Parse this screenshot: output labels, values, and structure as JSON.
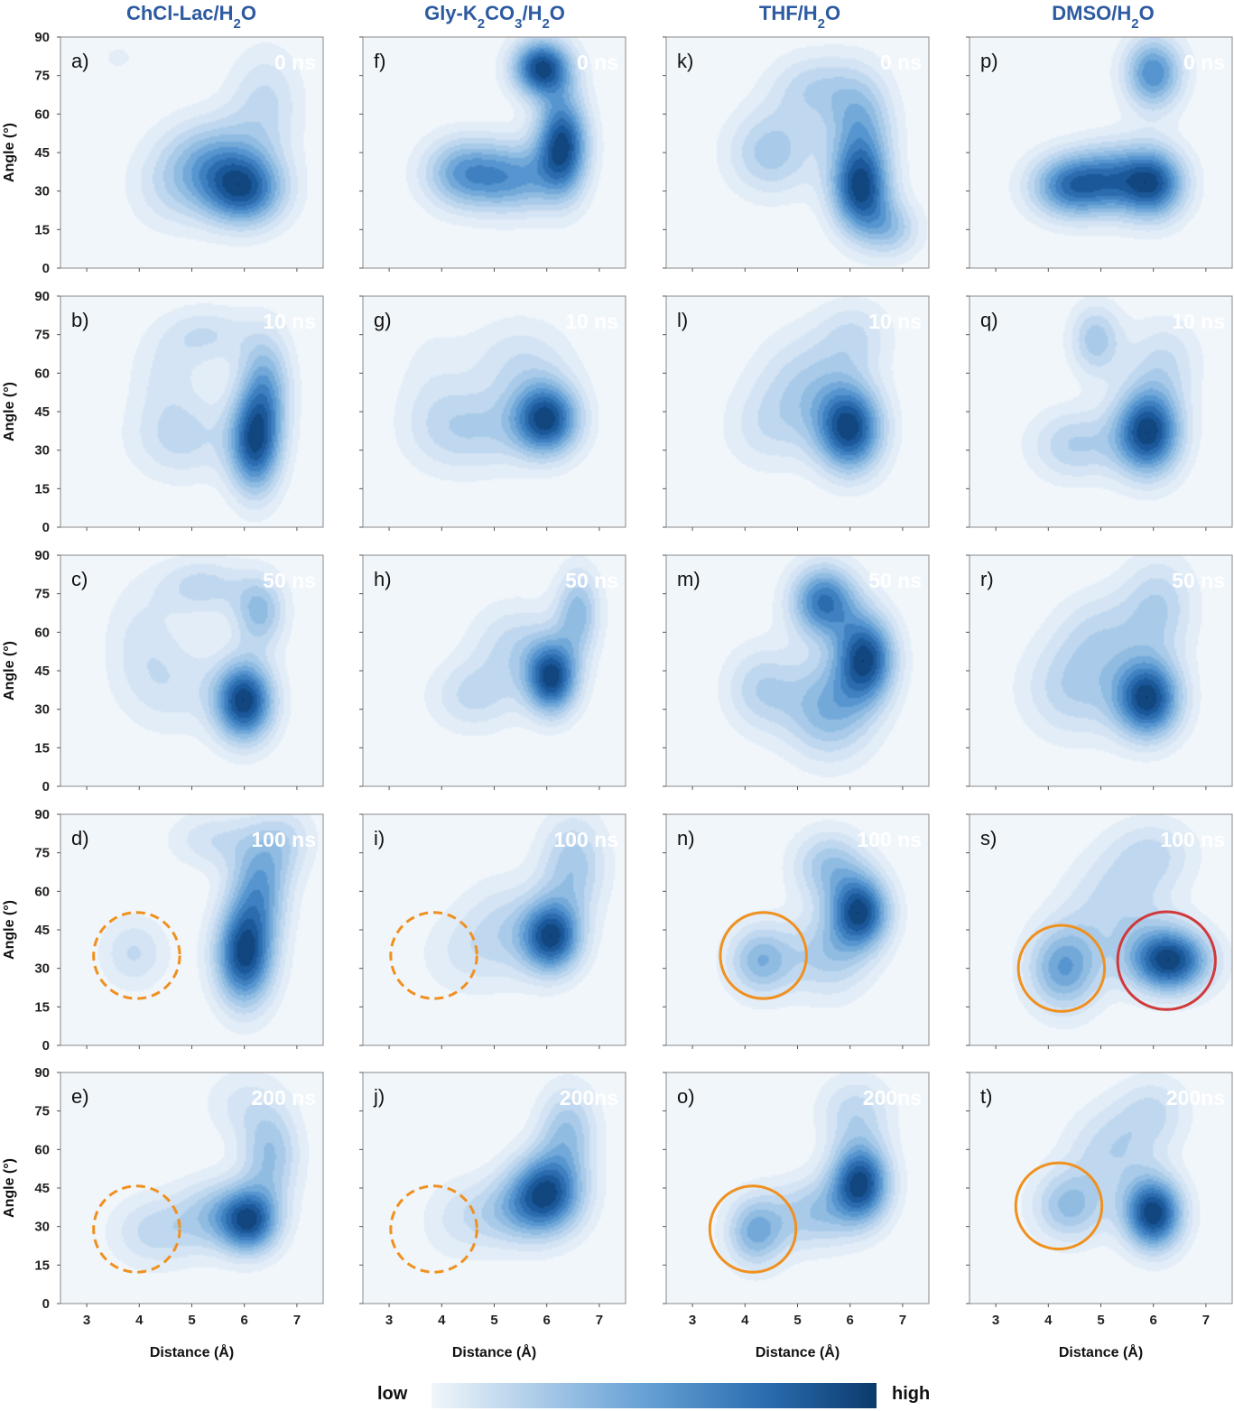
{
  "columns": [
    {
      "title": "ChCl-Lac/H",
      "sub": "2",
      "tail": "O"
    },
    {
      "title": "Gly-K",
      "sub": "2",
      "mid": "CO",
      "sub2": "3",
      "tail": "/H",
      "sub3": "2",
      "tail2": "O"
    },
    {
      "title": "THF/H",
      "sub": "2",
      "tail": "O"
    },
    {
      "title": "DMSO/H",
      "sub": "2",
      "tail": "O"
    }
  ],
  "colorbar": {
    "low": "low",
    "high": "high",
    "colors": [
      "#f1f6fb",
      "#0b3a6c"
    ]
  },
  "chart_data": {
    "type": "heatmap",
    "description_grid": "5 rows (time) x 4 columns (solvent) of 2D density maps",
    "xlabel": "Distance (Å)",
    "ylabel": "Angle (°)",
    "xlim": [
      2.5,
      7.5
    ],
    "ylim": [
      0,
      90
    ],
    "xticks": [
      3,
      4,
      5,
      6,
      7
    ],
    "yticks": [
      0,
      15,
      30,
      45,
      60,
      75,
      90
    ],
    "panels": [
      {
        "label": "a)",
        "time": "0 ns",
        "col": 0,
        "row": 0,
        "peaks": [
          [
            6.0,
            30,
            1.0,
            0.55,
            10
          ],
          [
            5.4,
            42,
            0.6,
            0.7,
            12
          ],
          [
            6.4,
            65,
            0.35,
            0.5,
            15
          ],
          [
            4.6,
            30,
            0.25,
            0.6,
            12
          ],
          [
            3.6,
            82,
            0.12,
            0.5,
            8
          ]
        ]
      },
      {
        "label": "b)",
        "time": "10 ns",
        "col": 0,
        "row": 1,
        "peaks": [
          [
            6.2,
            32,
            1.0,
            0.35,
            14
          ],
          [
            6.4,
            55,
            0.6,
            0.35,
            15
          ],
          [
            4.8,
            35,
            0.35,
            0.7,
            12
          ],
          [
            5.3,
            75,
            0.3,
            0.6,
            8
          ],
          [
            4.5,
            60,
            0.2,
            0.5,
            12
          ]
        ]
      },
      {
        "label": "c)",
        "time": "50 ns",
        "col": 0,
        "row": 2,
        "peaks": [
          [
            6.0,
            33,
            1.0,
            0.4,
            11
          ],
          [
            6.3,
            68,
            0.45,
            0.35,
            10
          ],
          [
            5.2,
            78,
            0.3,
            0.6,
            8
          ],
          [
            4.6,
            40,
            0.22,
            0.7,
            14
          ],
          [
            4.0,
            60,
            0.15,
            0.5,
            15
          ]
        ]
      },
      {
        "label": "d)",
        "time": "100 ns",
        "col": 0,
        "row": 3,
        "peaks": [
          [
            6.0,
            35,
            1.0,
            0.4,
            14
          ],
          [
            6.3,
            62,
            0.55,
            0.4,
            14
          ],
          [
            3.9,
            36,
            0.28,
            0.45,
            10
          ],
          [
            5.4,
            80,
            0.25,
            0.6,
            8
          ],
          [
            6.8,
            80,
            0.25,
            0.4,
            10
          ]
        ]
      },
      {
        "label": "e)",
        "time": "200 ns",
        "col": 0,
        "row": 4,
        "peaks": [
          [
            6.1,
            32,
            1.0,
            0.4,
            9
          ],
          [
            6.5,
            58,
            0.5,
            0.4,
            14
          ],
          [
            4.3,
            28,
            0.35,
            0.6,
            10
          ],
          [
            5.4,
            35,
            0.4,
            0.5,
            10
          ],
          [
            5.9,
            78,
            0.2,
            0.5,
            10
          ]
        ]
      },
      {
        "label": "f)",
        "time": "0 ns",
        "col": 1,
        "row": 0,
        "peaks": [
          [
            5.9,
            78,
            1.0,
            0.4,
            8
          ],
          [
            6.3,
            48,
            1.0,
            0.35,
            14
          ],
          [
            4.4,
            37,
            0.6,
            0.55,
            10
          ],
          [
            5.4,
            35,
            0.55,
            0.55,
            10
          ]
        ]
      },
      {
        "label": "g)",
        "time": "10 ns",
        "col": 1,
        "row": 1,
        "peaks": [
          [
            6.0,
            42,
            1.0,
            0.45,
            10
          ],
          [
            4.6,
            38,
            0.35,
            0.8,
            12
          ],
          [
            5.5,
            65,
            0.25,
            0.7,
            12
          ],
          [
            3.8,
            55,
            0.12,
            0.5,
            20
          ]
        ]
      },
      {
        "label": "h)",
        "time": "50 ns",
        "col": 1,
        "row": 2,
        "peaks": [
          [
            6.1,
            42,
            1.0,
            0.35,
            10
          ],
          [
            6.6,
            68,
            0.5,
            0.3,
            12
          ],
          [
            4.6,
            35,
            0.3,
            0.6,
            10
          ],
          [
            5.4,
            55,
            0.3,
            0.6,
            12
          ]
        ]
      },
      {
        "label": "i)",
        "time": "100 ns",
        "col": 1,
        "row": 3,
        "peaks": [
          [
            6.1,
            42,
            1.0,
            0.4,
            10
          ],
          [
            6.5,
            70,
            0.45,
            0.45,
            14
          ],
          [
            4.3,
            35,
            0.15,
            0.6,
            12
          ],
          [
            5.2,
            45,
            0.3,
            0.6,
            14
          ]
        ]
      },
      {
        "label": "j)",
        "time": "200ns",
        "col": 1,
        "row": 4,
        "peaks": [
          [
            6.0,
            43,
            1.0,
            0.5,
            11
          ],
          [
            6.4,
            68,
            0.45,
            0.4,
            12
          ],
          [
            4.2,
            32,
            0.15,
            0.5,
            12
          ],
          [
            5.2,
            35,
            0.35,
            0.6,
            10
          ]
        ]
      },
      {
        "label": "k)",
        "time": "0 ns",
        "col": 2,
        "row": 0,
        "peaks": [
          [
            6.2,
            30,
            1.0,
            0.4,
            12
          ],
          [
            6.2,
            55,
            0.55,
            0.45,
            15
          ],
          [
            4.5,
            45,
            0.45,
            0.6,
            12
          ],
          [
            6.8,
            15,
            0.4,
            0.4,
            8
          ],
          [
            5.3,
            70,
            0.35,
            0.6,
            10
          ]
        ]
      },
      {
        "label": "l)",
        "time": "10 ns",
        "col": 2,
        "row": 1,
        "peaks": [
          [
            6.0,
            38,
            1.0,
            0.45,
            12
          ],
          [
            5.2,
            55,
            0.35,
            0.7,
            15
          ],
          [
            4.4,
            38,
            0.2,
            0.6,
            12
          ],
          [
            6.1,
            75,
            0.25,
            0.5,
            10
          ]
        ]
      },
      {
        "label": "m)",
        "time": "50 ns",
        "col": 2,
        "row": 2,
        "peaks": [
          [
            6.3,
            50,
            1.0,
            0.4,
            12
          ],
          [
            5.5,
            72,
            0.85,
            0.45,
            10
          ],
          [
            5.6,
            30,
            0.55,
            0.6,
            14
          ],
          [
            4.3,
            38,
            0.35,
            0.5,
            12
          ]
        ]
      },
      {
        "label": "n)",
        "time": "100 ns",
        "col": 2,
        "row": 3,
        "peaks": [
          [
            6.2,
            52,
            1.0,
            0.4,
            10
          ],
          [
            4.3,
            33,
            0.55,
            0.45,
            10
          ],
          [
            5.6,
            70,
            0.45,
            0.5,
            10
          ],
          [
            5.6,
            35,
            0.4,
            0.55,
            12
          ]
        ]
      },
      {
        "label": "o)",
        "time": "200ns",
        "col": 2,
        "row": 4,
        "peaks": [
          [
            6.2,
            47,
            1.0,
            0.4,
            11
          ],
          [
            4.2,
            28,
            0.55,
            0.4,
            10
          ],
          [
            5.3,
            35,
            0.4,
            0.55,
            10
          ],
          [
            6.1,
            75,
            0.3,
            0.5,
            10
          ]
        ]
      },
      {
        "label": "p)",
        "time": "0 ns",
        "col": 3,
        "row": 0,
        "peaks": [
          [
            6.0,
            33,
            1.0,
            0.45,
            10
          ],
          [
            4.4,
            32,
            0.85,
            0.55,
            9
          ],
          [
            6.0,
            76,
            0.8,
            0.4,
            10
          ],
          [
            5.2,
            35,
            0.55,
            0.5,
            10
          ]
        ]
      },
      {
        "label": "q)",
        "time": "10 ns",
        "col": 3,
        "row": 1,
        "peaks": [
          [
            5.9,
            37,
            1.0,
            0.45,
            12
          ],
          [
            4.9,
            73,
            0.4,
            0.35,
            10
          ],
          [
            4.5,
            32,
            0.35,
            0.6,
            10
          ],
          [
            6.2,
            65,
            0.25,
            0.5,
            12
          ]
        ]
      },
      {
        "label": "r)",
        "time": "50 ns",
        "col": 3,
        "row": 2,
        "peaks": [
          [
            5.9,
            34,
            1.0,
            0.45,
            11
          ],
          [
            4.5,
            38,
            0.35,
            0.7,
            14
          ],
          [
            6.1,
            70,
            0.35,
            0.5,
            14
          ],
          [
            5.0,
            60,
            0.25,
            0.6,
            12
          ]
        ]
      },
      {
        "label": "s)",
        "time": "100 ns",
        "col": 3,
        "row": 3,
        "peaks": [
          [
            6.3,
            33,
            1.0,
            0.55,
            9
          ],
          [
            4.3,
            30,
            0.6,
            0.5,
            12
          ],
          [
            5.3,
            55,
            0.3,
            0.7,
            14
          ],
          [
            6.0,
            75,
            0.25,
            0.6,
            10
          ]
        ]
      },
      {
        "label": "t)",
        "time": "200ns",
        "col": 3,
        "row": 4,
        "peaks": [
          [
            6.0,
            35,
            1.0,
            0.4,
            10
          ],
          [
            4.4,
            38,
            0.45,
            0.5,
            10
          ],
          [
            5.2,
            60,
            0.3,
            0.6,
            12
          ],
          [
            6.0,
            75,
            0.25,
            0.5,
            10
          ]
        ]
      }
    ],
    "circles": [
      {
        "panel": "d)",
        "x": 3.95,
        "y": 35,
        "style": "dashed",
        "color": "#f0901e",
        "r_data": 0.82
      },
      {
        "panel": "e)",
        "x": 3.95,
        "y": 29,
        "style": "dashed",
        "color": "#f0901e",
        "r_data": 0.82
      },
      {
        "panel": "i)",
        "x": 3.85,
        "y": 35,
        "style": "dashed",
        "color": "#f0901e",
        "r_data": 0.82
      },
      {
        "panel": "j)",
        "x": 3.85,
        "y": 29,
        "style": "dashed",
        "color": "#f0901e",
        "r_data": 0.82
      },
      {
        "panel": "n)",
        "x": 4.35,
        "y": 35,
        "style": "solid",
        "color": "#f0901e",
        "r_data": 0.82
      },
      {
        "panel": "o)",
        "x": 4.15,
        "y": 29,
        "style": "solid",
        "color": "#f0901e",
        "r_data": 0.82
      },
      {
        "panel": "s)",
        "x": 4.25,
        "y": 30,
        "style": "solid",
        "color": "#f0901e",
        "r_data": 0.82
      },
      {
        "panel": "s)",
        "x": 6.25,
        "y": 33,
        "style": "solid",
        "color": "#d0393b",
        "r_data": 0.93
      },
      {
        "panel": "t)",
        "x": 4.2,
        "y": 38,
        "style": "solid",
        "color": "#f0901e",
        "r_data": 0.82
      }
    ]
  }
}
